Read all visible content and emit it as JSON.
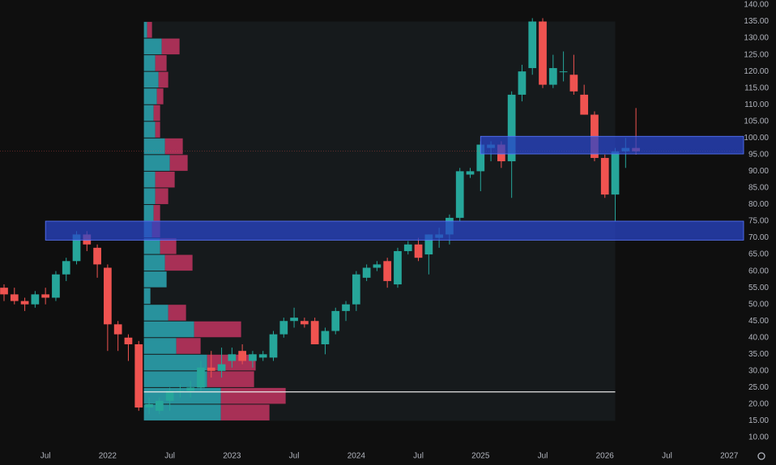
{
  "chart_data": {
    "type": "candlestick",
    "x": [
      "2021-03",
      "2021-04",
      "2021-05",
      "2021-06",
      "2021-07",
      "2021-08",
      "2021-09",
      "2021-10",
      "2021-11",
      "2021-12",
      "2022-01",
      "2022-02",
      "2022-03",
      "2022-04",
      "2022-05",
      "2022-06",
      "2022-07",
      "2022-08",
      "2022-09",
      "2022-10",
      "2022-11",
      "2022-12",
      "2023-01",
      "2023-02",
      "2023-03",
      "2023-04",
      "2023-05",
      "2023-06",
      "2023-07",
      "2023-08",
      "2023-09",
      "2023-10",
      "2023-11",
      "2023-12",
      "2024-01",
      "2024-02",
      "2024-03",
      "2024-04",
      "2024-05",
      "2024-06",
      "2024-07",
      "2024-08",
      "2024-09",
      "2024-10",
      "2024-11",
      "2024-12",
      "2025-01",
      "2025-02",
      "2025-03",
      "2025-04",
      "2025-05",
      "2025-06",
      "2025-07",
      "2025-08",
      "2025-09",
      "2025-10",
      "2025-11",
      "2025-12",
      "2026-01",
      "2026-02",
      "2026-03",
      "2026-04"
    ],
    "open": [
      55,
      53,
      51,
      50,
      53,
      52,
      59,
      63,
      71,
      67,
      61,
      44,
      40,
      38,
      19,
      18,
      21,
      24,
      24,
      25,
      31,
      30,
      33,
      36,
      33,
      34,
      34,
      41,
      45,
      45,
      45,
      38,
      42,
      48,
      50,
      58,
      61,
      63,
      56,
      66,
      68,
      65,
      70,
      71,
      76,
      89,
      90,
      97,
      98,
      93,
      113,
      121,
      135,
      116,
      120,
      119,
      113,
      107,
      94,
      83,
      96,
      97
    ],
    "high": [
      56,
      55,
      52,
      54,
      55,
      60,
      64,
      72,
      72,
      68,
      62,
      45,
      41,
      39,
      22,
      22,
      25,
      26,
      27,
      33,
      36,
      37,
      37,
      38,
      36,
      36,
      42,
      46,
      49,
      46,
      46,
      43,
      49,
      51,
      60,
      62,
      63,
      64,
      67,
      69,
      70,
      71,
      73,
      77,
      91,
      91,
      99,
      99,
      99,
      114,
      122,
      136,
      136,
      125,
      126,
      125,
      116,
      108,
      95,
      97,
      100,
      109
    ],
    "low": [
      51,
      50,
      48,
      49,
      50,
      51,
      57,
      62,
      66,
      58,
      36,
      36,
      33,
      18,
      17,
      17,
      18,
      22,
      22,
      24,
      28,
      28,
      31,
      32,
      31,
      33,
      33,
      40,
      43,
      43,
      38,
      35,
      41,
      45,
      48,
      57,
      60,
      55,
      55,
      65,
      63,
      59,
      67,
      68,
      75,
      88,
      84,
      93,
      91,
      82,
      111,
      119,
      115,
      115,
      117,
      113,
      107,
      93,
      82,
      75,
      91,
      95
    ],
    "close": [
      53,
      51,
      50,
      53,
      52,
      59,
      63,
      71,
      68,
      62,
      44,
      41,
      38,
      19,
      20,
      21,
      24,
      24,
      25,
      31,
      30,
      32,
      35,
      33,
      35,
      35,
      41,
      45,
      46,
      44,
      38,
      42,
      48,
      50,
      59,
      61,
      62,
      57,
      66,
      68,
      64,
      71,
      71,
      76,
      90,
      90,
      98,
      98,
      93,
      113,
      120,
      135,
      116,
      121,
      120,
      114,
      107,
      94,
      83,
      96,
      97,
      96
    ],
    "up_color": "#26a69a",
    "down_color": "#ef5350",
    "xlim": [
      "2021-03",
      "2027-02"
    ],
    "ylim": [
      10,
      140
    ],
    "xticks": [
      {
        "value": "2021-07",
        "label": "Jul"
      },
      {
        "value": "2022-01",
        "label": "2022"
      },
      {
        "value": "2022-07",
        "label": "Jul"
      },
      {
        "value": "2023-01",
        "label": "2023"
      },
      {
        "value": "2023-07",
        "label": "Jul"
      },
      {
        "value": "2024-01",
        "label": "2024"
      },
      {
        "value": "2024-07",
        "label": "Jul"
      },
      {
        "value": "2025-01",
        "label": "2025"
      },
      {
        "value": "2025-07",
        "label": "Jul"
      },
      {
        "value": "2026-01",
        "label": "2026"
      },
      {
        "value": "2026-07",
        "label": "Jul"
      },
      {
        "value": "2027-01",
        "label": "2027"
      }
    ],
    "yticks": [
      {
        "value": 140,
        "label": "140.00"
      },
      {
        "value": 135,
        "label": "135.00"
      },
      {
        "value": 130,
        "label": "130.00"
      },
      {
        "value": 125,
        "label": "125.00"
      },
      {
        "value": 120,
        "label": "120.00"
      },
      {
        "value": 115,
        "label": "115.00"
      },
      {
        "value": 110,
        "label": "110.00"
      },
      {
        "value": 105,
        "label": "105.00"
      },
      {
        "value": 100,
        "label": "100.00"
      },
      {
        "value": 95,
        "label": "95.00"
      },
      {
        "value": 90,
        "label": "90.00"
      },
      {
        "value": 85,
        "label": "85.00"
      },
      {
        "value": 80,
        "label": "80.00"
      },
      {
        "value": 75,
        "label": "75.00"
      },
      {
        "value": 70,
        "label": "70.00"
      },
      {
        "value": 65,
        "label": "65.00"
      },
      {
        "value": 60,
        "label": "60.00"
      },
      {
        "value": 55,
        "label": "55.00"
      },
      {
        "value": 50,
        "label": "50.00"
      },
      {
        "value": 45,
        "label": "45.00"
      },
      {
        "value": 40,
        "label": "40.00"
      },
      {
        "value": 35,
        "label": "35.00"
      },
      {
        "value": 30,
        "label": "30.00"
      },
      {
        "value": 25,
        "label": "25.00"
      },
      {
        "value": 20,
        "label": "20.00"
      },
      {
        "value": 15,
        "label": "15.00"
      },
      {
        "value": 10,
        "label": "10.00"
      }
    ],
    "grid": false,
    "volume_profile": {
      "from": "2022-04",
      "to": "2026-02",
      "bins": [
        15,
        20,
        25,
        30,
        35,
        40,
        45,
        50,
        55,
        60,
        65,
        70,
        75,
        80,
        85,
        90,
        95,
        100,
        105,
        110,
        115,
        120,
        125,
        130,
        135
      ],
      "up": [
        95,
        95,
        78,
        78,
        40,
        62,
        30,
        8,
        28,
        26,
        20,
        10,
        12,
        14,
        14,
        32,
        26,
        14,
        12,
        16,
        18,
        14,
        22,
        4
      ],
      "down": [
        60,
        80,
        58,
        60,
        30,
        58,
        22,
        0,
        0,
        34,
        20,
        10,
        8,
        16,
        24,
        22,
        22,
        6,
        8,
        8,
        12,
        14,
        22,
        6
      ],
      "up_color": "#2ba8b4",
      "down_color": "#c23560",
      "poc_line": 23.7
    },
    "zones": [
      {
        "from": "2021-07",
        "low": 69.3,
        "high": 75,
        "color": "#2a46c8"
      },
      {
        "from": "2025-01",
        "low": 95.2,
        "high": 100.5,
        "color": "#2a46c8"
      }
    ]
  }
}
